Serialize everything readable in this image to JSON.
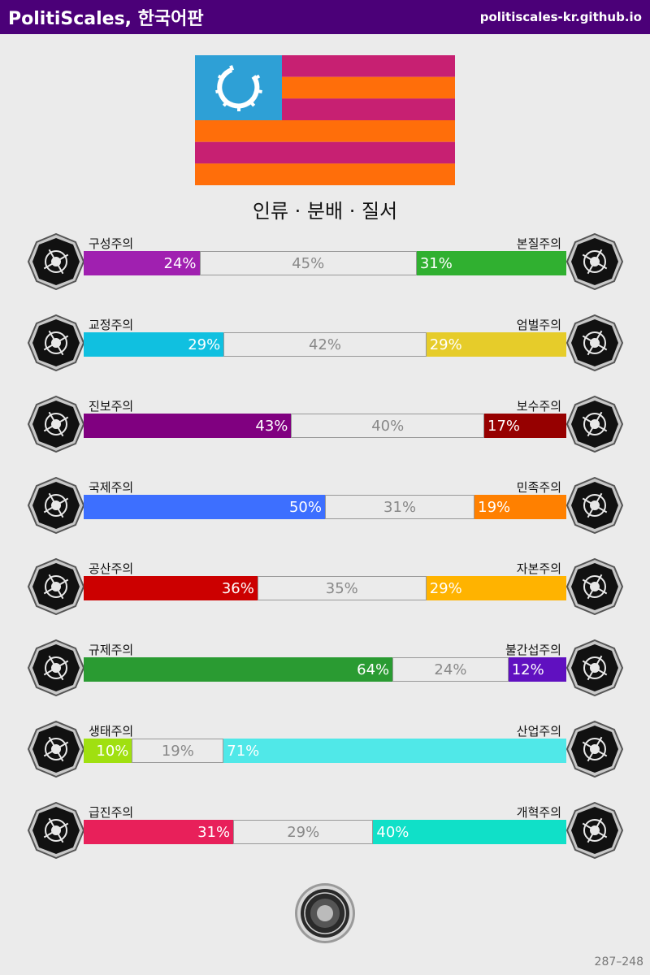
{
  "header": {
    "title": "PolitiScales, 한국어판",
    "url": "politiscales-kr.github.io"
  },
  "flag": {
    "colors": [
      "#c72072",
      "#ff6e0a"
    ],
    "canton": "#2ea0d6",
    "symbol": "gear-icon"
  },
  "subtitle": "인류 · 분배 · 질서",
  "axes": [
    {
      "left": "구성주의",
      "right": "본질주의",
      "lv": "24%",
      "mv": "45%",
      "rv": "31%",
      "l": 24,
      "m": 45,
      "r": 31,
      "lc": "#a020b0",
      "rc": "#30b030",
      "licon": "eye-icon",
      "ricon": "flower-icon"
    },
    {
      "left": "교정주의",
      "right": "엄벌주의",
      "lv": "29%",
      "mv": "42%",
      "rv": "29%",
      "l": 29,
      "m": 42,
      "r": 29,
      "lc": "#10c0e0",
      "rc": "#e6cc2a",
      "licon": "handshake-icon",
      "ricon": "prison-bars-icon"
    },
    {
      "left": "진보주의",
      "right": "보수주의",
      "lv": "43%",
      "mv": "40%",
      "rv": "17%",
      "l": 43,
      "m": 40,
      "r": 17,
      "lc": "#800080",
      "rc": "#960000",
      "licon": "rocket-icon",
      "ricon": "quill-icon"
    },
    {
      "left": "국제주의",
      "right": "민족주의",
      "lv": "50%",
      "mv": "31%",
      "rv": "19%",
      "l": 50,
      "m": 31,
      "r": 19,
      "lc": "#3d6fff",
      "rc": "#ff8000",
      "licon": "globe-icon",
      "ricon": "flag-icon"
    },
    {
      "left": "공산주의",
      "right": "자본주의",
      "lv": "36%",
      "mv": "35%",
      "rv": "29%",
      "l": 36,
      "m": 35,
      "r": 29,
      "lc": "#cc0000",
      "rc": "#ffb300",
      "licon": "hammer-sickle-icon",
      "ricon": "money-bag-icon"
    },
    {
      "left": "규제주의",
      "right": "불간섭주의",
      "lv": "64%",
      "mv": "24%",
      "rv": "12%",
      "l": 64,
      "m": 24,
      "r": 12,
      "lc": "#2a9b32",
      "rc": "#6010c0",
      "licon": "ruler-icon",
      "ricon": "butterfly-icon"
    },
    {
      "left": "생태주의",
      "right": "산업주의",
      "lv": "10%",
      "mv": "19%",
      "rv": "71%",
      "l": 10,
      "m": 19,
      "r": 71,
      "lc": "#a0e010",
      "rc": "#50e8e8",
      "licon": "sprout-icon",
      "ricon": "gear-icon"
    },
    {
      "left": "급진주의",
      "right": "개혁주의",
      "lv": "31%",
      "mv": "29%",
      "rv": "40%",
      "l": 31,
      "m": 29,
      "r": 40,
      "lc": "#e8205a",
      "rc": "#10e0c8",
      "licon": "fist-icon",
      "ricon": "parliament-icon"
    }
  ],
  "footer": {
    "seal": "seal-icon",
    "code": "287–248"
  }
}
